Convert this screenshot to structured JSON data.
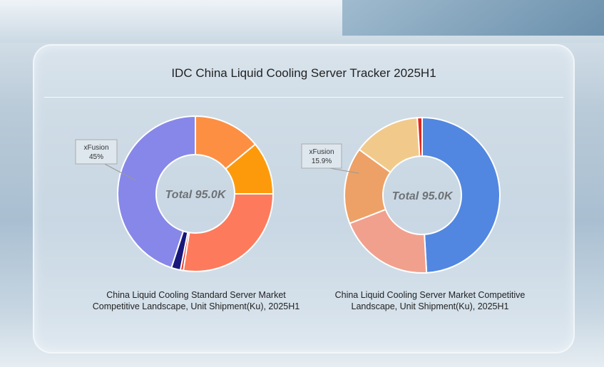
{
  "title": "IDC China Liquid Cooling Server Tracker 2025H1",
  "chart_data": [
    {
      "type": "pie",
      "donut": true,
      "center_label": "Total 95.0K",
      "caption": [
        "China Liquid Cooling Standard Server Market",
        "Competitive Landscape, Unit Shipment(Ku), 2025H1"
      ],
      "slices": [
        {
          "value": 14.0,
          "color": "#fd8f42"
        },
        {
          "value": 11.0,
          "color": "#fd9a0b"
        },
        {
          "value": 27.5,
          "color": "#fe7a5c"
        },
        {
          "value": 0.6,
          "color": "#ee2a1d"
        },
        {
          "value": 1.9,
          "color": "#17187a"
        },
        {
          "value": 45.0,
          "color": "#8787e9",
          "label": "xFusion",
          "pct_label": "45%"
        }
      ]
    },
    {
      "type": "pie",
      "donut": true,
      "center_label": "Total 95.0K",
      "caption": [
        "China Liquid Cooling Server Market Competitive",
        "Landscape, Unit Shipment(Ku), 2025H1"
      ],
      "slices": [
        {
          "value": 49.1,
          "color": "#5187e0"
        },
        {
          "value": 20.0,
          "color": "#f1a08d"
        },
        {
          "value": 15.9,
          "color": "#eda166",
          "label": "xFusion",
          "pct_label": "15.9%"
        },
        {
          "value": 14.0,
          "color": "#f1ca8b"
        },
        {
          "value": 1.0,
          "color": "#e1281f"
        }
      ]
    }
  ]
}
